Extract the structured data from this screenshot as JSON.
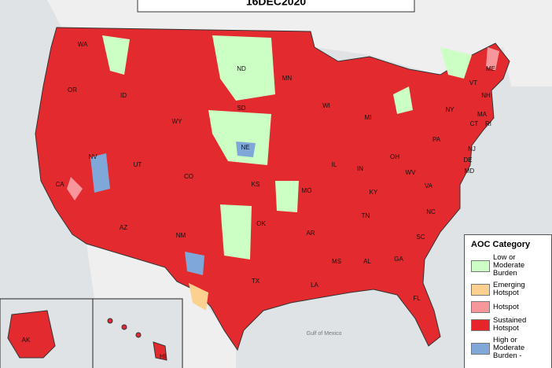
{
  "title": "16DEC2020",
  "states": [
    {
      "label": "WA"
    },
    {
      "label": "OR"
    },
    {
      "label": "ID"
    },
    {
      "label": "ND"
    },
    {
      "label": "MN"
    },
    {
      "label": "WI"
    },
    {
      "label": "MI"
    },
    {
      "label": "SD"
    },
    {
      "label": "WY"
    },
    {
      "label": "NE"
    },
    {
      "label": "NV"
    },
    {
      "label": "UT"
    },
    {
      "label": "CO"
    },
    {
      "label": "KS"
    },
    {
      "label": "MO"
    },
    {
      "label": "IL"
    },
    {
      "label": "IN"
    },
    {
      "label": "OH"
    },
    {
      "label": "PA"
    },
    {
      "label": "NY"
    },
    {
      "label": "NJ"
    },
    {
      "label": "DE"
    },
    {
      "label": "MD"
    },
    {
      "label": "VA"
    },
    {
      "label": "WV"
    },
    {
      "label": "KY"
    },
    {
      "label": "TN"
    },
    {
      "label": "NC"
    },
    {
      "label": "SC"
    },
    {
      "label": "GA"
    },
    {
      "label": "AL"
    },
    {
      "label": "MS"
    },
    {
      "label": "LA"
    },
    {
      "label": "AR"
    },
    {
      "label": "OK"
    },
    {
      "label": "TX"
    },
    {
      "label": "NM"
    },
    {
      "label": "AZ"
    },
    {
      "label": "CA"
    },
    {
      "label": "FL"
    },
    {
      "label": "VT"
    },
    {
      "label": "NH"
    },
    {
      "label": "ME"
    },
    {
      "label": "MA"
    },
    {
      "label": "CT"
    },
    {
      "label": "RI"
    },
    {
      "label": "AK"
    },
    {
      "label": "HI"
    }
  ],
  "water_labels": [
    "Gulf of Mexico"
  ],
  "legend": {
    "title": "AOC Category",
    "items": [
      {
        "label": "Low or Moderate Burden",
        "color": "#ccffc4"
      },
      {
        "label": "Emerging Hotspot",
        "color": "#fcd08f"
      },
      {
        "label": "Hotspot",
        "color": "#f7979b"
      },
      {
        "label": "Sustained Hotspot",
        "color": "#e8242b"
      },
      {
        "label": "High or Moderate Burden -",
        "color": "#7fa8d8"
      }
    ]
  }
}
